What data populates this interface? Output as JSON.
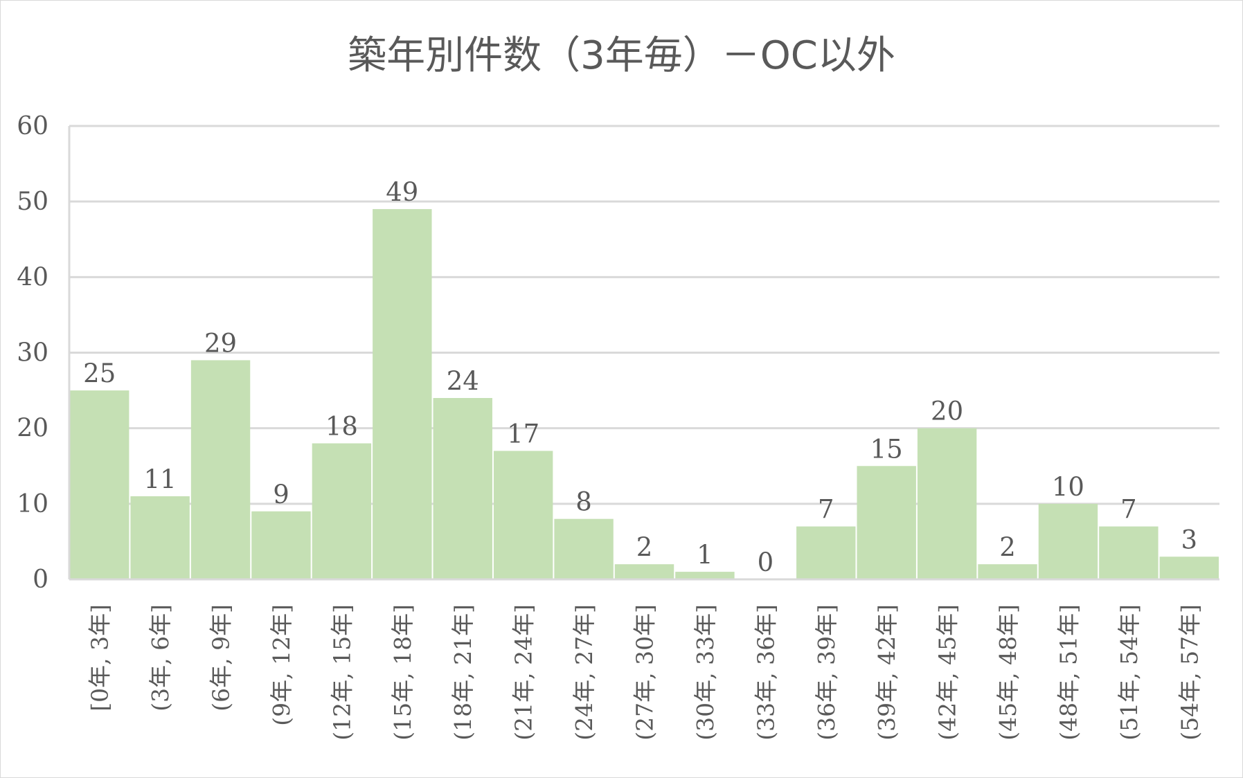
{
  "chart_data": {
    "type": "bar",
    "title": "築年別件数（3年毎）－OC以外",
    "categories": [
      "[0年, 3年]",
      "(3年, 6年]",
      "(6年, 9年]",
      "(9年, 12年]",
      "(12年, 15年]",
      "(15年, 18年]",
      "(18年, 21年]",
      "(21年, 24年]",
      "(24年, 27年]",
      "(27年, 30年]",
      "(30年, 33年]",
      "(33年, 36年]",
      "(36年, 39年]",
      "(39年, 42年]",
      "(42年, 45年]",
      "(45年, 48年]",
      "(48年, 51年]",
      "(51年, 54年]",
      "(54年, 57年]"
    ],
    "values": [
      25,
      11,
      29,
      9,
      18,
      49,
      24,
      17,
      8,
      2,
      1,
      0,
      7,
      15,
      20,
      2,
      10,
      7,
      3
    ],
    "ylim": [
      0,
      60
    ],
    "yticks": [
      0,
      10,
      20,
      30,
      40,
      50,
      60
    ],
    "grid": true,
    "bar_color": "#c5e0b4",
    "gridline_color": "#d9d9d9",
    "text_color": "#595959"
  }
}
